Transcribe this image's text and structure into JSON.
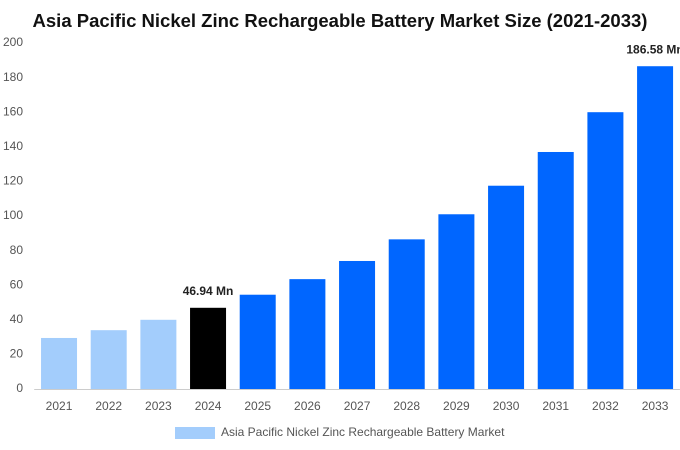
{
  "chart_data": {
    "type": "bar",
    "title": "Asia Pacific Nickel Zinc Rechargeable Battery Market Size (2021-2033)",
    "categories": [
      "2021",
      "2022",
      "2023",
      "2024",
      "2025",
      "2026",
      "2027",
      "2028",
      "2029",
      "2030",
      "2031",
      "2032",
      "2033"
    ],
    "series": [
      {
        "name": "Asia Pacific Nickel Zinc Rechargeable Battery Market",
        "color": "#a3cdfc",
        "colors": [
          "#a3cdfc",
          "#a3cdfc",
          "#a3cdfc",
          "#000000",
          "#0066ff",
          "#0066ff",
          "#0066ff",
          "#0066ff",
          "#0066ff",
          "#0066ff",
          "#0066ff",
          "#0066ff",
          "#0066ff"
        ],
        "values": [
          29.5,
          34,
          40,
          46.94,
          54.5,
          63.5,
          74,
          86.5,
          101,
          117.5,
          137,
          160,
          186.58
        ],
        "value_labels": [
          null,
          null,
          null,
          "46.94 Mn",
          null,
          null,
          null,
          null,
          null,
          null,
          null,
          null,
          "186.58 Mn"
        ]
      }
    ],
    "ylim": [
      0,
      200
    ],
    "yticks": [
      0,
      20,
      40,
      60,
      80,
      100,
      120,
      140,
      160,
      180,
      200
    ],
    "grid": false
  }
}
